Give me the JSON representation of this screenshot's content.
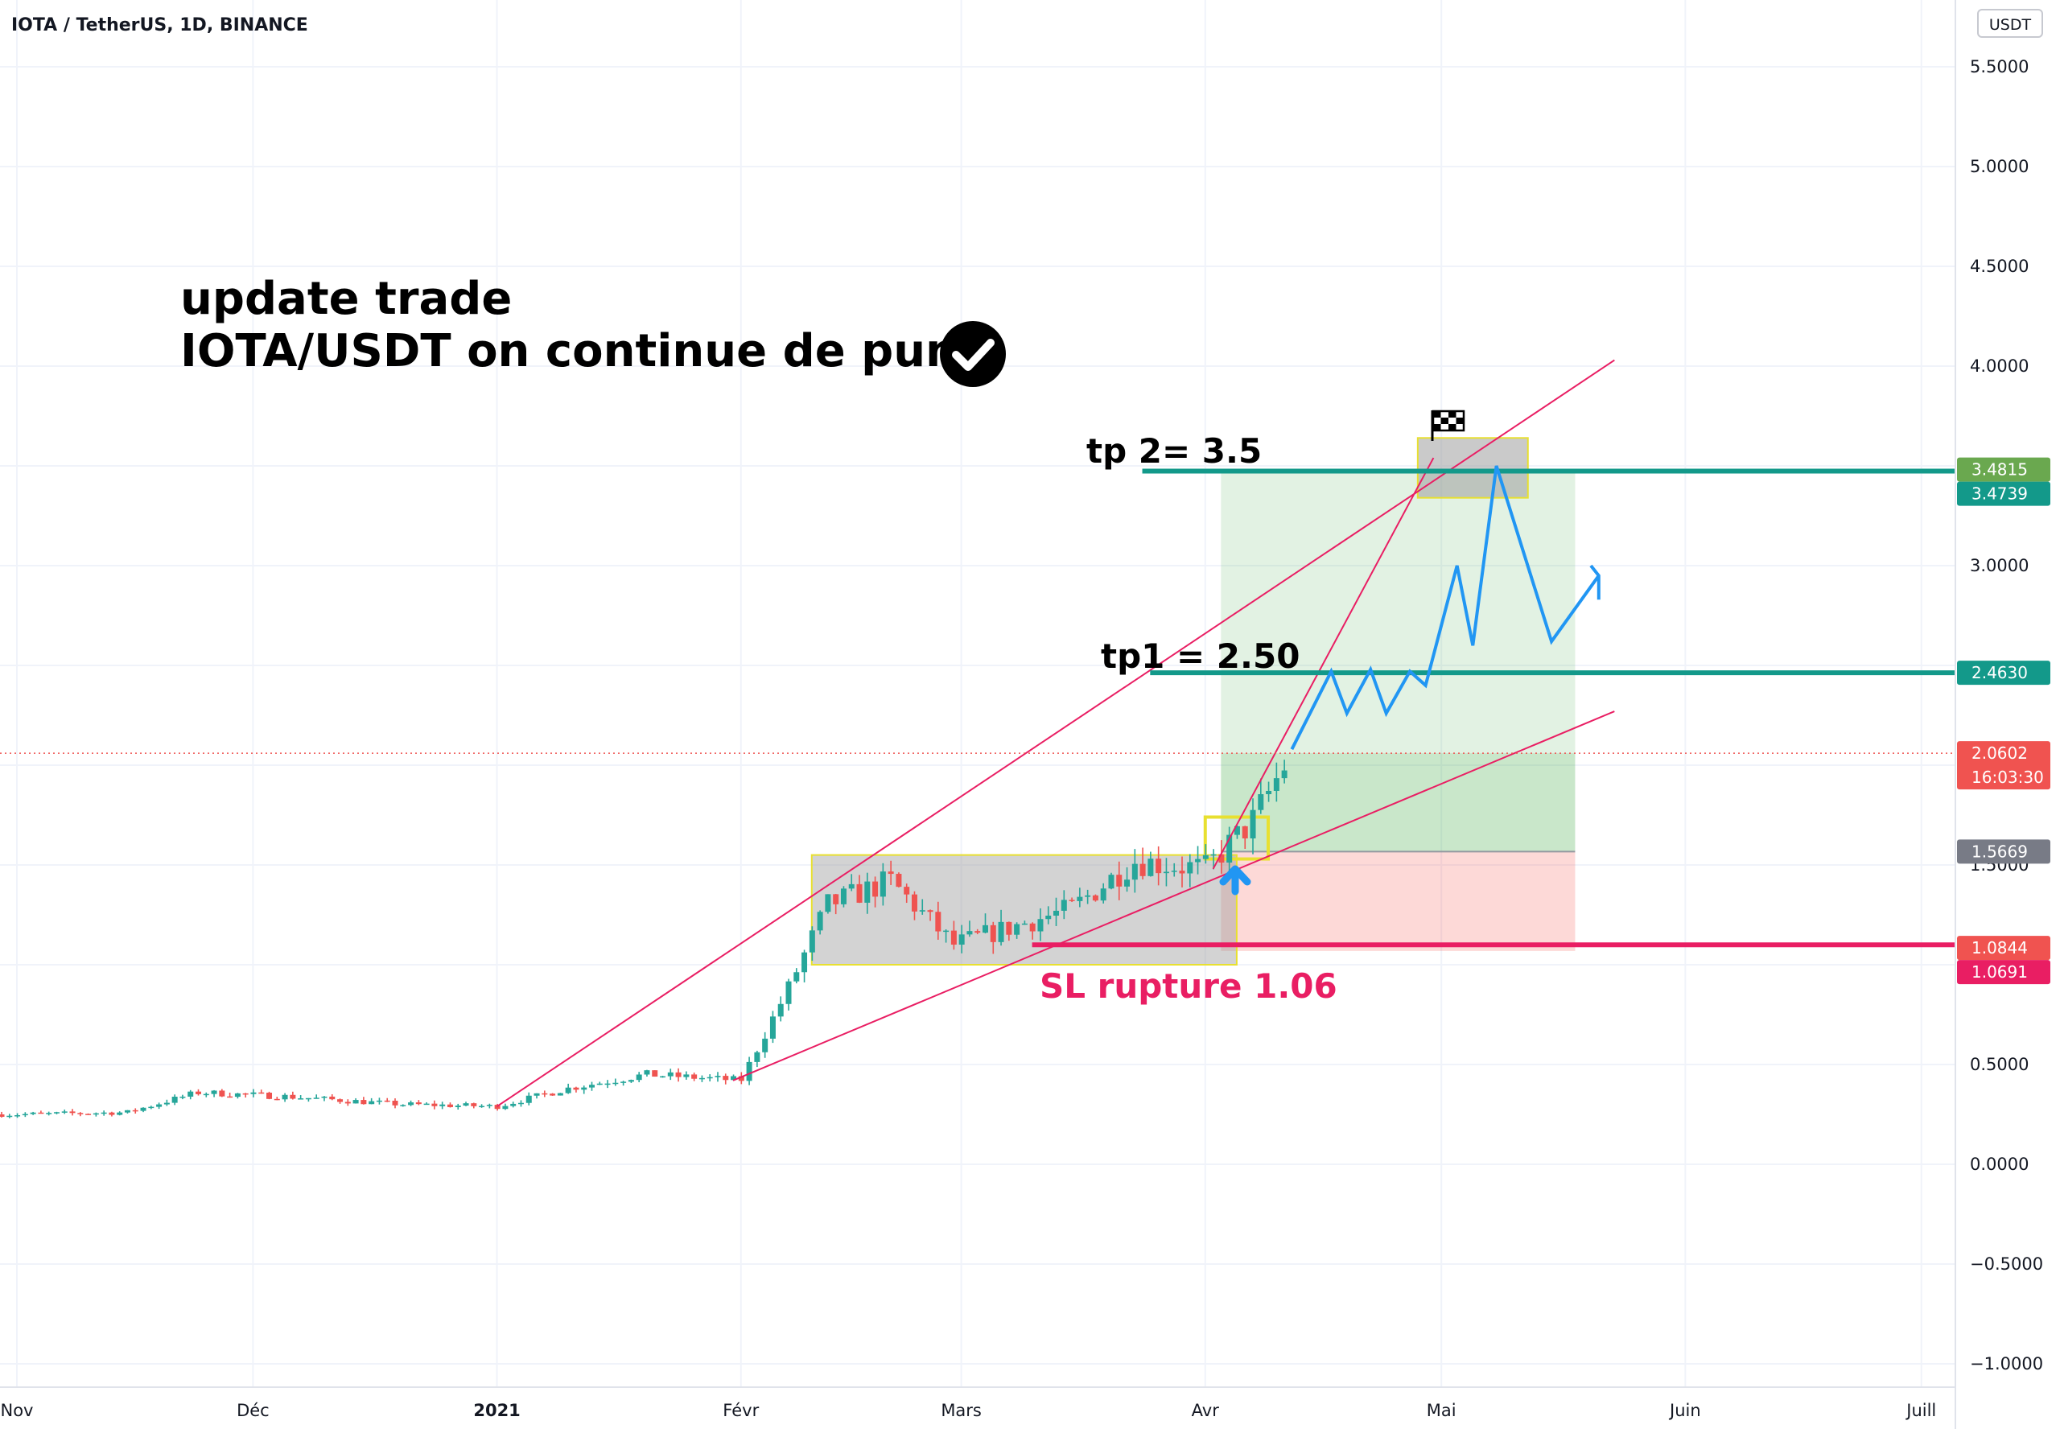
{
  "header": {
    "symbol": "IOTA / TetherUS, 1D, BINANCE",
    "currency_button": "USDT"
  },
  "annotations": {
    "title_line1": "update trade",
    "title_line2": "IOTA/USDT on continue de pump",
    "title_icon": "check-circle-icon",
    "tp2_label": "tp 2= 3.5",
    "tp1_label": "tp1 = 2.50",
    "sl_label": "SL rupture 1.06",
    "flag_icon": "checkered-flag-icon",
    "entry_arrow_icon": "up-arrow-icon"
  },
  "price_labels": [
    {
      "text": "3.4815",
      "value": 3.4815,
      "color": "#6aa84f"
    },
    {
      "text": "3.4739",
      "value": 3.4739,
      "color": "#13998a"
    },
    {
      "text": "2.4630",
      "value": 2.463,
      "color": "#13998a"
    },
    {
      "text": "2.0602",
      "value": 2.0602,
      "color": "#f05350",
      "sub": "16:03:30"
    },
    {
      "text": "1.5669",
      "value": 1.5669,
      "color": "#787b86"
    },
    {
      "text": "1.0844",
      "value": 1.0844,
      "color": "#f05350"
    },
    {
      "text": "1.0691",
      "value": 1.0691,
      "color": "#e91e63"
    }
  ],
  "colors": {
    "up": "#26a69a",
    "down": "#ef5350",
    "trendline": "#e91e63",
    "target_line": "#13998a",
    "stop_line": "#e91e63",
    "projection": "#2196f3",
    "profit_zone": "#4caf50",
    "loss_zone": "#f44336",
    "range_box": "#9e9e9e",
    "range_border": "#e8e030",
    "sl_text": "#e91e63"
  },
  "chart_data": {
    "type": "candlestick",
    "title": "IOTA / TetherUS, 1D, BINANCE",
    "ylabel": "USDT",
    "ylim": [
      -1.0,
      5.5
    ],
    "y_ticks": [
      5.5,
      5.0,
      4.5,
      4.0,
      3.0,
      1.5,
      0.5,
      0.0,
      -0.5,
      -1.0
    ],
    "y_tick_labels": [
      "5.5000",
      "5.0000",
      "4.5000",
      "4.0000",
      "3.0000",
      "1.5000",
      "0.5000",
      "0.0000",
      "−0.5000",
      "−1.0000"
    ],
    "x_ticks": [
      {
        "label": "Nov",
        "date": "2020-11-01"
      },
      {
        "label": "Déc",
        "date": "2020-12-01"
      },
      {
        "label": "2021",
        "date": "2021-01-01"
      },
      {
        "label": "Févr",
        "date": "2021-02-01"
      },
      {
        "label": "Mars",
        "date": "2021-03-01"
      },
      {
        "label": "Avr",
        "date": "2021-04-01"
      },
      {
        "label": "Mai",
        "date": "2021-05-01"
      },
      {
        "label": "Juin",
        "date": "2021-06-01"
      },
      {
        "label": "Juill",
        "date": "2021-07-01"
      }
    ],
    "xlim": [
      "2020-10-29",
      "2021-07-22"
    ],
    "last_price": 2.0602,
    "countdown": "16:03:30",
    "closes_approx": [
      {
        "date": "2020-11-01",
        "close": 0.25
      },
      {
        "date": "2020-11-15",
        "close": 0.26
      },
      {
        "date": "2020-11-24",
        "close": 0.36
      },
      {
        "date": "2020-12-05",
        "close": 0.34
      },
      {
        "date": "2020-12-20",
        "close": 0.3
      },
      {
        "date": "2021-01-01",
        "close": 0.29
      },
      {
        "date": "2021-01-10",
        "close": 0.38
      },
      {
        "date": "2021-01-20",
        "close": 0.45
      },
      {
        "date": "2021-02-01",
        "close": 0.42
      },
      {
        "date": "2021-02-07",
        "close": 0.88
      },
      {
        "date": "2021-02-12",
        "close": 1.3
      },
      {
        "date": "2021-02-20",
        "close": 1.42
      },
      {
        "date": "2021-02-28",
        "close": 1.1
      },
      {
        "date": "2021-03-15",
        "close": 1.28
      },
      {
        "date": "2021-03-23",
        "close": 1.52
      },
      {
        "date": "2021-04-01",
        "close": 1.48
      },
      {
        "date": "2021-04-07",
        "close": 1.72
      },
      {
        "date": "2021-04-12",
        "close": 2.06
      }
    ],
    "levels": {
      "tp2": 3.4739,
      "tp1": 2.463,
      "entry": 1.5669,
      "stop": 1.0691
    }
  }
}
